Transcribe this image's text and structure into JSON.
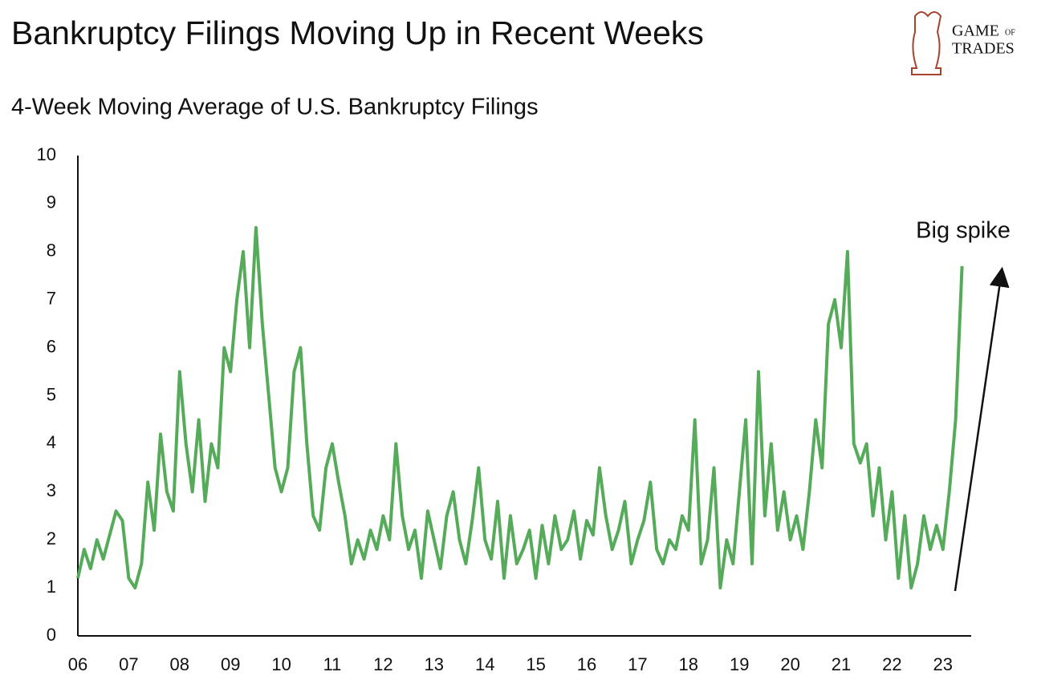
{
  "chart_data": {
    "type": "line",
    "title": "Bankruptcy Filings Moving Up in Recent Weeks",
    "subtitle": "4-Week Moving Average of U.S. Bankruptcy Filings",
    "annotation": "Big spike",
    "logo": {
      "line1": "GAME",
      "small": "OF",
      "line2": "TRADES"
    },
    "categories": [
      "06",
      null,
      null,
      null,
      null,
      null,
      null,
      null,
      "07",
      null,
      null,
      null,
      null,
      null,
      null,
      null,
      "08",
      null,
      null,
      null,
      null,
      null,
      null,
      null,
      "09",
      null,
      null,
      null,
      null,
      null,
      null,
      null,
      "10",
      null,
      null,
      null,
      null,
      null,
      null,
      null,
      "11",
      null,
      null,
      null,
      null,
      null,
      null,
      null,
      "12",
      null,
      null,
      null,
      null,
      null,
      null,
      null,
      "13",
      null,
      null,
      null,
      null,
      null,
      null,
      null,
      "14",
      null,
      null,
      null,
      null,
      null,
      null,
      null,
      "15",
      null,
      null,
      null,
      null,
      null,
      null,
      null,
      "16",
      null,
      null,
      null,
      null,
      null,
      null,
      null,
      "17",
      null,
      null,
      null,
      null,
      null,
      null,
      null,
      "18",
      null,
      null,
      null,
      null,
      null,
      null,
      null,
      "19",
      null,
      null,
      null,
      null,
      null,
      null,
      null,
      "20",
      null,
      null,
      null,
      null,
      null,
      null,
      null,
      "21",
      null,
      null,
      null,
      null,
      null,
      null,
      null,
      "22",
      null,
      null,
      null,
      null,
      null,
      null,
      null,
      "23",
      null,
      null,
      null
    ],
    "series": [
      {
        "name": "4-Week Moving Average",
        "color": "#56ab5a",
        "values": [
          1.2,
          1.8,
          1.4,
          2.0,
          1.6,
          2.1,
          2.6,
          2.4,
          1.2,
          1.0,
          1.5,
          3.2,
          2.2,
          4.2,
          3.0,
          2.6,
          5.5,
          4.0,
          3.0,
          4.5,
          2.8,
          4.0,
          3.5,
          6.0,
          5.5,
          7.0,
          8.0,
          6.0,
          8.5,
          6.5,
          5.0,
          3.5,
          3.0,
          3.5,
          5.5,
          6.0,
          4.0,
          2.5,
          2.2,
          3.5,
          4.0,
          3.2,
          2.5,
          1.5,
          2.0,
          1.6,
          2.2,
          1.8,
          2.5,
          2.0,
          4.0,
          2.5,
          1.8,
          2.2,
          1.2,
          2.6,
          2.0,
          1.4,
          2.5,
          3.0,
          2.0,
          1.5,
          2.4,
          3.5,
          2.0,
          1.6,
          2.8,
          1.2,
          2.5,
          1.5,
          1.8,
          2.2,
          1.2,
          2.3,
          1.5,
          2.5,
          1.8,
          2.0,
          2.6,
          1.6,
          2.4,
          2.1,
          3.5,
          2.5,
          1.8,
          2.2,
          2.8,
          1.5,
          2.0,
          2.4,
          3.2,
          1.8,
          1.5,
          2.0,
          1.8,
          2.5,
          2.2,
          4.5,
          1.5,
          2.0,
          3.5,
          1.0,
          2.0,
          1.5,
          3.0,
          4.5,
          1.5,
          5.5,
          2.5,
          4.0,
          2.2,
          3.0,
          2.0,
          2.5,
          1.8,
          3.0,
          4.5,
          3.5,
          6.5,
          7.0,
          6.0,
          8.0,
          4.0,
          3.6,
          4.0,
          2.5,
          3.5,
          2.0,
          3.0,
          1.2,
          2.5,
          1.0,
          1.5,
          2.5,
          1.8,
          2.3,
          1.8,
          3.0,
          4.5,
          7.7
        ]
      }
    ],
    "ylim": [
      0,
      10
    ],
    "yticks": [
      0,
      1,
      2,
      3,
      4,
      5,
      6,
      7,
      8,
      9,
      10
    ],
    "grid": false
  }
}
